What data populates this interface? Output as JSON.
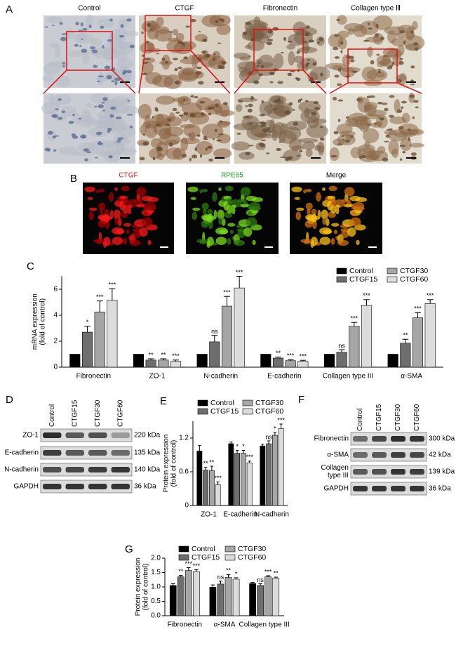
{
  "panel_a": {
    "label": "A",
    "columns": [
      "Control",
      "CTGF",
      "Fibronectin",
      "Collagen type Ⅲ"
    ]
  },
  "panel_b": {
    "label": "B",
    "channels": [
      "CTGF",
      "RPE65",
      "Merge"
    ]
  },
  "chart_data": [
    {
      "type": "bar",
      "label": "C",
      "ylabel": [
        "mRNA expression",
        "(fold of control)"
      ],
      "categories": [
        "Fibronectin",
        "ZO-1",
        "N-cadherin",
        "E-cadherin",
        "Collagen type III",
        "α-SMA"
      ],
      "ylim": [
        0,
        7
      ],
      "yticks": [
        0,
        2,
        4,
        6
      ],
      "series": [
        {
          "name": "Control",
          "color": "#000000",
          "values": [
            1,
            1,
            1,
            1,
            1,
            1
          ]
        },
        {
          "name": "CTGF15",
          "color": "#6e6e6e",
          "values": [
            2.7,
            0.55,
            1.95,
            0.7,
            1.15,
            1.85
          ],
          "errors": [
            0.45,
            0.1,
            0.5,
            0.08,
            0.2,
            0.3
          ],
          "annotations": [
            "*",
            "**",
            "ns",
            "**",
            "ns",
            "**"
          ]
        },
        {
          "name": "CTGF30",
          "color": "#a6a6a6",
          "values": [
            4.25,
            0.55,
            4.7,
            0.5,
            3.15,
            3.8
          ],
          "errors": [
            0.85,
            0.1,
            0.75,
            0.08,
            0.3,
            0.4
          ],
          "annotations": [
            "***",
            "**",
            "***",
            "***",
            "***",
            "***"
          ]
        },
        {
          "name": "CTGF60",
          "color": "#dcdcdc",
          "values": [
            5.15,
            0.45,
            6.1,
            0.45,
            4.75,
            4.9
          ],
          "errors": [
            0.9,
            0.1,
            0.9,
            0.08,
            0.45,
            0.3
          ],
          "annotations": [
            "***",
            "***",
            "***",
            "***",
            "***",
            "***"
          ]
        }
      ]
    },
    {
      "type": "bar",
      "label": "E",
      "ylabel": [
        "Protein expression",
        "(fold of control)"
      ],
      "categories": [
        "ZO-1",
        "E-cadherin",
        "N-cadherin"
      ],
      "ylim": [
        0,
        1.5
      ],
      "yticks": [
        0,
        0.6,
        1.2
      ],
      "series": [
        {
          "name": "Control",
          "color": "#000000",
          "values": [
            0.97,
            1.1,
            1.06
          ],
          "errors": [
            0.1,
            0.03,
            0.03
          ]
        },
        {
          "name": "CTGF15",
          "color": "#6e6e6e",
          "values": [
            0.63,
            0.93,
            1.1
          ],
          "errors": [
            0.05,
            0.05,
            0.05
          ],
          "annotations": [
            "**",
            "*",
            "ns"
          ]
        },
        {
          "name": "CTGF30",
          "color": "#a6a6a6",
          "values": [
            0.62,
            0.93,
            1.25
          ],
          "errors": [
            0.08,
            0.05,
            0.05
          ],
          "annotations": [
            "**",
            "*",
            "*"
          ]
        },
        {
          "name": "CTGF60",
          "color": "#dcdcdc",
          "values": [
            0.37,
            0.76,
            1.37
          ],
          "errors": [
            0.05,
            0.03,
            0.08
          ],
          "annotations": [
            "***",
            "***",
            "***"
          ]
        }
      ]
    },
    {
      "type": "bar",
      "label": "G",
      "ylabel": [
        "Protein expression",
        "(fold of control)"
      ],
      "categories": [
        "Fibronectin",
        "α-SMA",
        "Collagen type III"
      ],
      "ylim": [
        0,
        2.0
      ],
      "yticks": [
        {
          "value": 0,
          "label": "0.0"
        },
        0.5,
        {
          "value": 1,
          "label": "1.0"
        },
        1.5,
        {
          "value": 2,
          "label": "2.0"
        }
      ],
      "series": [
        {
          "name": "Control",
          "color": "#000000",
          "values": [
            1.05,
            0.99,
            1.12
          ],
          "errors": [
            0.06,
            0.08,
            0.04
          ]
        },
        {
          "name": "CTGF15",
          "color": "#6e6e6e",
          "values": [
            1.35,
            1.1,
            1.05
          ],
          "errors": [
            0.05,
            0.1,
            0.06
          ],
          "annotations": [
            "**",
            "ns",
            "ns"
          ]
        },
        {
          "name": "CTGF30",
          "color": "#a6a6a6",
          "values": [
            1.57,
            1.33,
            1.35
          ],
          "errors": [
            0.1,
            0.1,
            0.04
          ],
          "annotations": [
            "***",
            "**",
            "***"
          ]
        },
        {
          "name": "CTGF60",
          "color": "#dcdcdc",
          "values": [
            1.53,
            1.27,
            1.31
          ],
          "errors": [
            0.07,
            0.05,
            0.03
          ],
          "annotations": [
            "***",
            "*",
            "**"
          ]
        }
      ]
    }
  ],
  "panel_d": {
    "label": "D",
    "lanes": [
      "Control",
      "CTGF15",
      "CTGF30",
      "CTGF60"
    ],
    "rows": [
      {
        "name": "ZO-1",
        "size": "220 kDa"
      },
      {
        "name": "E-cadherin",
        "size": "135 kDa"
      },
      {
        "name": "N-cadherin",
        "size": "140 kDa"
      },
      {
        "name": "GAPDH",
        "size": "36 kDa"
      }
    ]
  },
  "panel_f": {
    "label": "F",
    "lanes": [
      "Control",
      "CTGF15",
      "CTGF30",
      "CTGF60"
    ],
    "rows": [
      {
        "name": [
          "Fibronectin"
        ],
        "size": "300 kDa"
      },
      {
        "name": [
          "α-SMA"
        ],
        "size": "42 kDa"
      },
      {
        "name": [
          "Collagen",
          "type III"
        ],
        "size": "139 kDa"
      },
      {
        "name": [
          "GAPDH"
        ],
        "size": "36 kDa"
      }
    ]
  }
}
